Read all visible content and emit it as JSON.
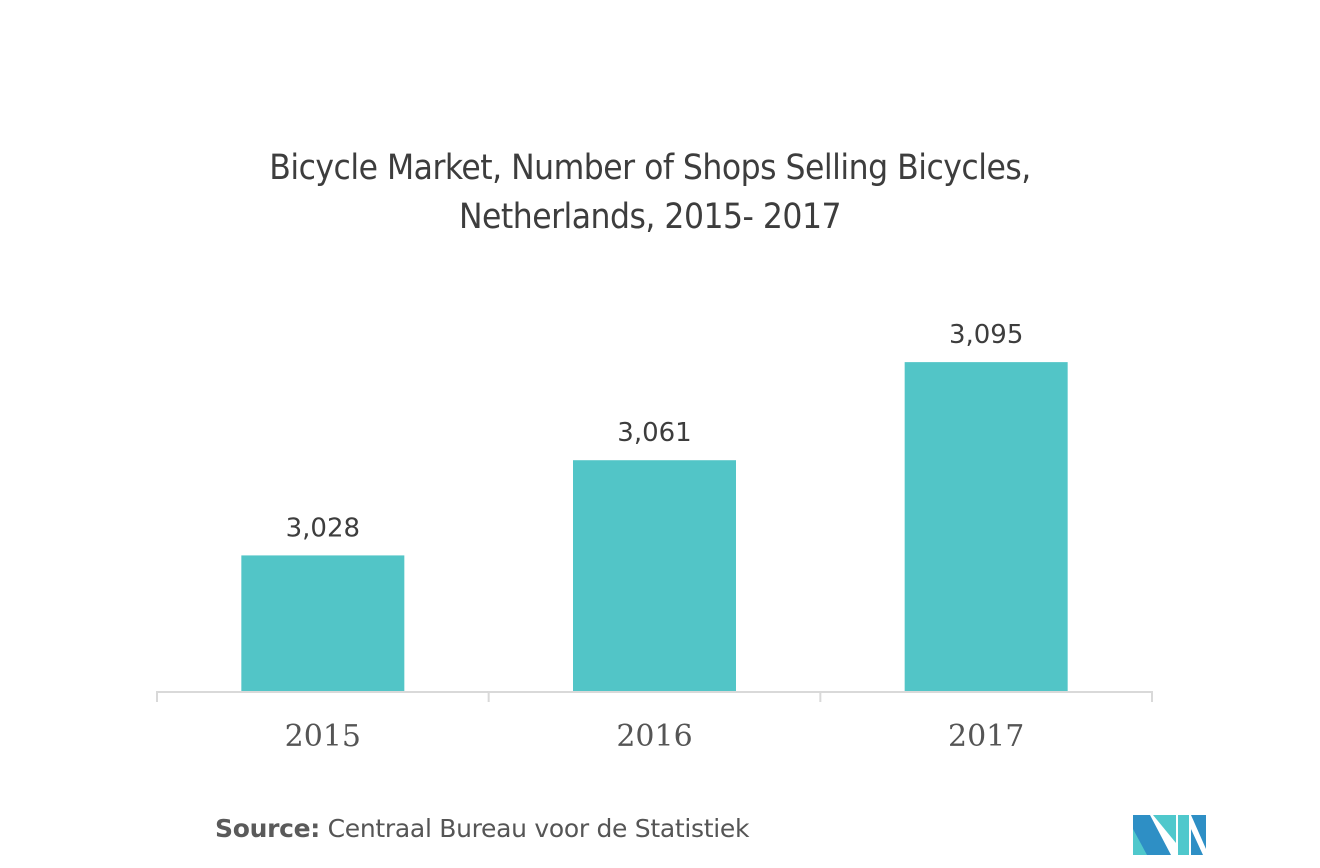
{
  "chart_data": {
    "type": "bar",
    "title": "Bicycle Market, Number of Shops Selling Bicycles,",
    "subtitle": "Netherlands, 2015- 2017",
    "categories": [
      "2015",
      "2016",
      "2017"
    ],
    "values": [
      3028,
      3061,
      3095
    ],
    "value_labels": [
      "3,028",
      "3,061",
      "3,095"
    ],
    "xlabel": "",
    "ylabel": "",
    "ylim": [
      2981,
      3120
    ],
    "grid": false,
    "legend": "none",
    "bar_color": "#52c5c7",
    "axis_color": "#d9d9d9"
  },
  "source": {
    "label": "Source:",
    "text": "Centraal Bureau voor de Statistiek"
  },
  "logo": {
    "icon": "mordor-intelligence-logo-icon",
    "colors": [
      "#2e8fc5",
      "#4fc8cc"
    ]
  }
}
